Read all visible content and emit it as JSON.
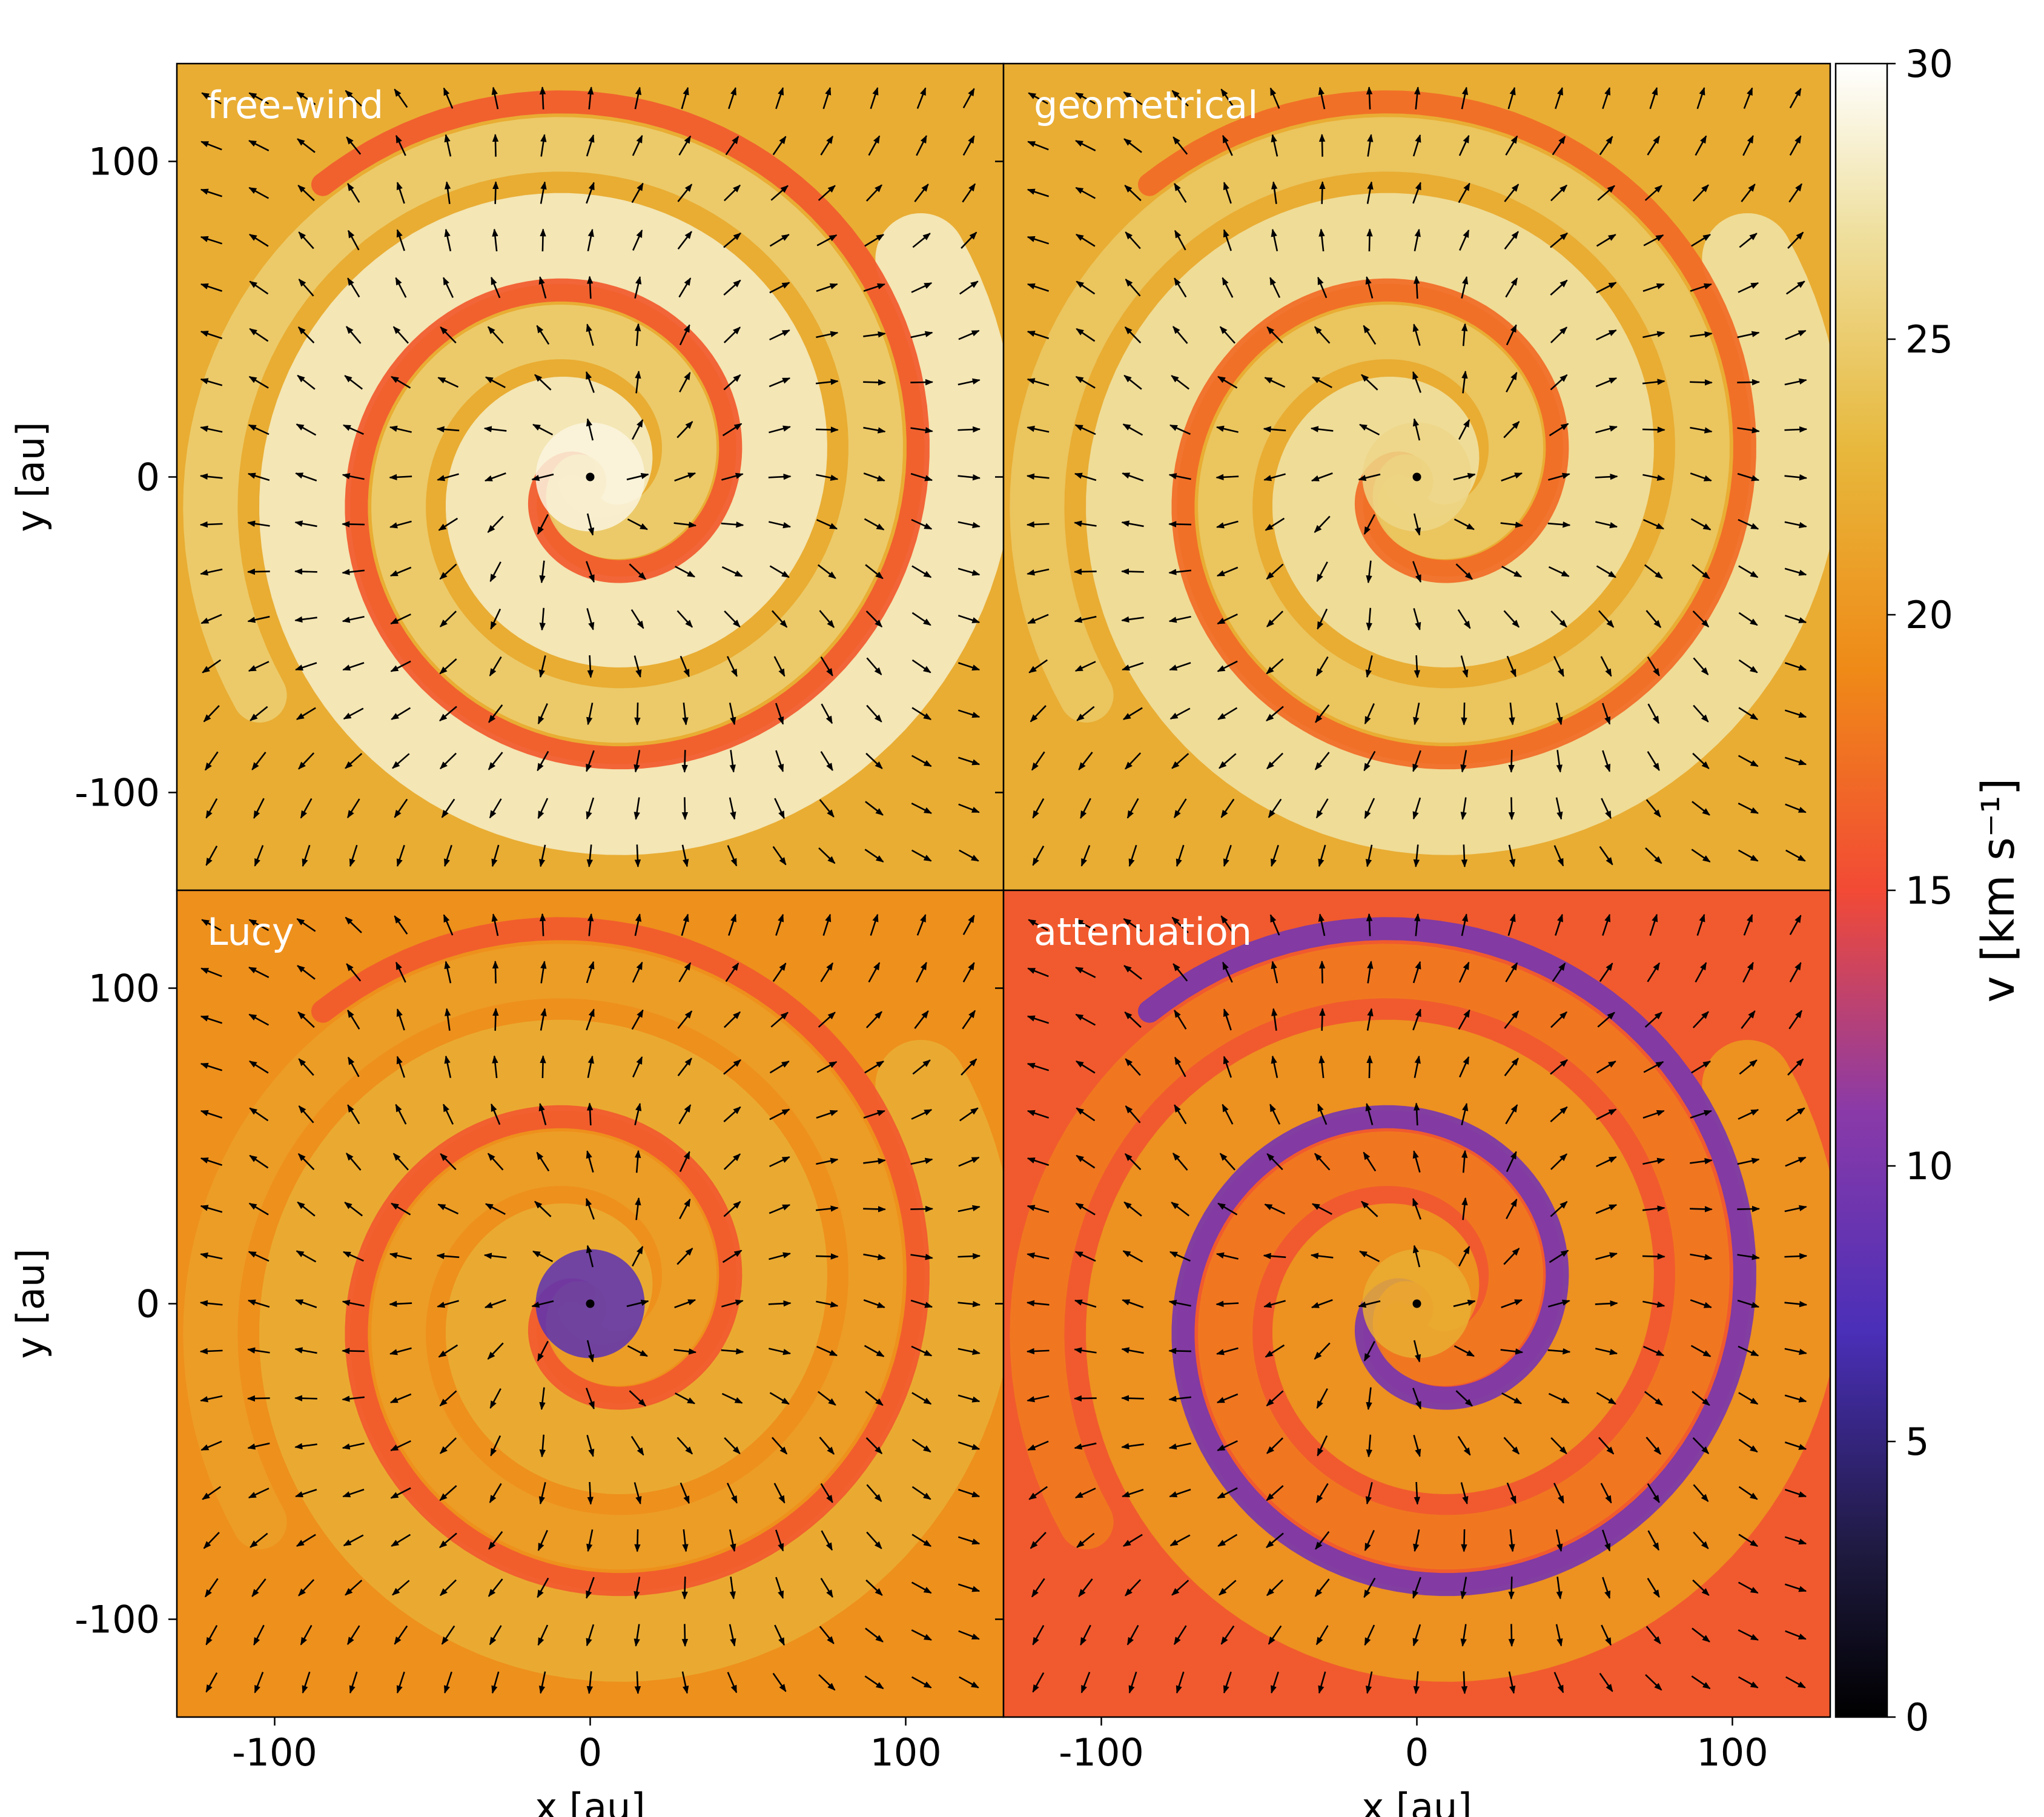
{
  "figure": {
    "axis_labels": {
      "x": "x [au]",
      "y": "y [au]"
    },
    "colorbar_label": "v [km s⁻¹]"
  },
  "chart_data": [
    {
      "type": "heatmap",
      "panel_label": "free-wind",
      "xlabel": "",
      "ylabel": "y [au]",
      "xlim": [
        -131,
        131
      ],
      "ylim": [
        -131,
        131
      ],
      "xticks": [
        -100,
        0,
        100
      ],
      "yticks": [
        -100,
        0,
        100
      ],
      "ytick_labels": [
        "-100",
        "0",
        "100"
      ],
      "xtick_labels": [],
      "field": "velocity magnitude with velocity-direction arrows",
      "value_unit": "km/s",
      "background_v": 22,
      "spiral_arm_v": 28,
      "gap_v": 16,
      "center_v": 29,
      "marker_at": [
        0,
        0
      ]
    },
    {
      "type": "heatmap",
      "panel_label": "geometrical",
      "xlabel": "",
      "ylabel": "",
      "xlim": [
        -131,
        131
      ],
      "ylim": [
        -131,
        131
      ],
      "xticks": [
        -100,
        0,
        100
      ],
      "yticks": [
        -100,
        0,
        100
      ],
      "ytick_labels": [],
      "xtick_labels": [],
      "field": "velocity magnitude with velocity-direction arrows",
      "value_unit": "km/s",
      "background_v": 22,
      "spiral_arm_v": 27,
      "gap_v": 17,
      "center_v": 26,
      "marker_at": [
        0,
        0
      ]
    },
    {
      "type": "heatmap",
      "panel_label": "Lucy",
      "xlabel": "x [au]",
      "ylabel": "y [au]",
      "xlim": [
        -131,
        131
      ],
      "ylim": [
        -131,
        131
      ],
      "xticks": [
        -100,
        0,
        100
      ],
      "yticks": [
        -100,
        0,
        100
      ],
      "ytick_labels": [
        "-100",
        "0",
        "100"
      ],
      "xtick_labels": [
        "-100",
        "0",
        "100"
      ],
      "field": "velocity magnitude with velocity-direction arrows",
      "value_unit": "km/s",
      "background_v": 19.5,
      "spiral_arm_v": 22,
      "gap_v": 16,
      "center_v": 8,
      "marker_at": [
        0,
        0
      ]
    },
    {
      "type": "heatmap",
      "panel_label": "attenuation",
      "xlabel": "x [au]",
      "ylabel": "",
      "xlim": [
        -131,
        131
      ],
      "ylim": [
        -131,
        131
      ],
      "xticks": [
        -100,
        0,
        100
      ],
      "yticks": [
        -100,
        0,
        100
      ],
      "ytick_labels": [],
      "xtick_labels": [
        "-100",
        "0",
        "100"
      ],
      "field": "velocity magnitude with velocity-direction arrows",
      "value_unit": "km/s",
      "background_v": 16,
      "spiral_arm_v": 20,
      "gap_v": 10,
      "center_v": 22,
      "marker_at": [
        0,
        0
      ]
    }
  ],
  "colorbar": {
    "colormap": "CMRmap",
    "vmin": 0,
    "vmax": 30,
    "ticks": [
      0,
      5,
      10,
      15,
      20,
      25,
      30
    ],
    "tick_labels": [
      "0",
      "5",
      "10",
      "15",
      "20",
      "25",
      "30"
    ],
    "stops": [
      {
        "v": 0,
        "color": "#000000"
      },
      {
        "v": 3,
        "color": "#1e1a40"
      },
      {
        "v": 7,
        "color": "#4a2fb8"
      },
      {
        "v": 11,
        "color": "#8a3aa8"
      },
      {
        "v": 15,
        "color": "#f24a35"
      },
      {
        "v": 19,
        "color": "#ef8a17"
      },
      {
        "v": 23,
        "color": "#e7b83c"
      },
      {
        "v": 27,
        "color": "#efe0a0"
      },
      {
        "v": 30,
        "color": "#ffffff"
      }
    ]
  }
}
